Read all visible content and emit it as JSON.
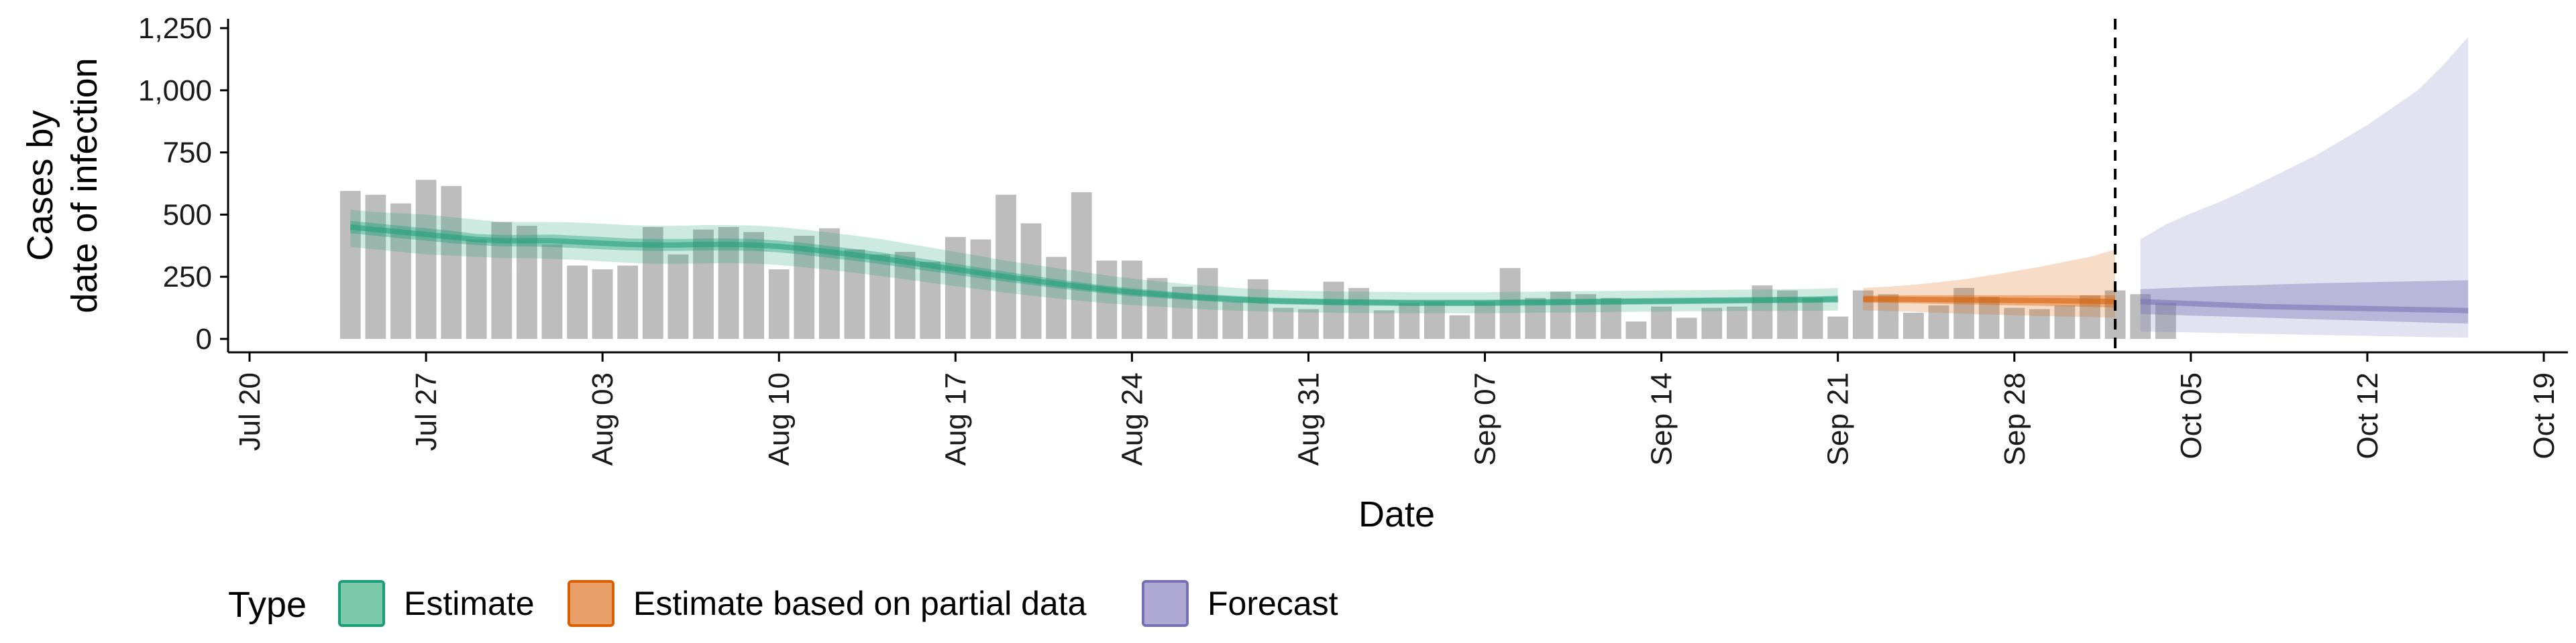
{
  "chart_data": {
    "type": "area",
    "xlabel": "Date",
    "ylabel_lines": [
      "Cases by",
      "date of infection"
    ],
    "x_tick_labels": [
      "Jul 20",
      "Jul 27",
      "Aug 03",
      "Aug 10",
      "Aug 17",
      "Aug 24",
      "Aug 31",
      "Sep 07",
      "Sep 14",
      "Sep 21",
      "Sep 28",
      "Oct 05",
      "Oct 12",
      "Oct 19"
    ],
    "x_tick_dates": [
      "2020-07-20",
      "2020-07-27",
      "2020-08-03",
      "2020-08-10",
      "2020-08-17",
      "2020-08-24",
      "2020-08-31",
      "2020-09-07",
      "2020-09-14",
      "2020-09-21",
      "2020-09-28",
      "2020-10-05",
      "2020-10-12",
      "2020-10-19"
    ],
    "xlim": [
      "2020-07-20",
      "2020-10-19"
    ],
    "y_tick_labels": [
      "0",
      "250",
      "500",
      "750",
      "1,000",
      "1,250"
    ],
    "y_tick_values": [
      0,
      250,
      500,
      750,
      1000,
      1250
    ],
    "ylim": [
      0,
      1250
    ],
    "vline_date": "2020-10-02",
    "legend": {
      "title": "Type",
      "position": "bottom",
      "items": [
        {
          "label": "Estimate",
          "fill": "#7cc8ab",
          "stroke": "#1b9e77"
        },
        {
          "label": "Estimate based on partial data",
          "fill": "#e8a068",
          "stroke": "#d95f02"
        },
        {
          "label": "Forecast",
          "fill": "#aeaad4",
          "stroke": "#7570b3"
        }
      ]
    },
    "colors": {
      "bars": "#bdbdbd",
      "estimate": "#1b9e77",
      "partial": "#d95f02",
      "forecast": "#7570b3"
    },
    "bars": {
      "start_date": "2020-07-24",
      "values": [
        595,
        580,
        545,
        640,
        615,
        400,
        470,
        455,
        380,
        295,
        280,
        295,
        450,
        340,
        440,
        450,
        430,
        280,
        415,
        445,
        360,
        340,
        350,
        310,
        410,
        400,
        580,
        465,
        330,
        590,
        315,
        315,
        245,
        210,
        285,
        150,
        240,
        125,
        120,
        230,
        205,
        115,
        145,
        150,
        95,
        150,
        285,
        165,
        190,
        180,
        165,
        70,
        130,
        85,
        125,
        130,
        215,
        195,
        165,
        90,
        195,
        180,
        105,
        135,
        205,
        170,
        125,
        120,
        135,
        175,
        195,
        180,
        145
      ]
    },
    "series": [
      {
        "name": "Estimate",
        "start_date": "2020-07-24",
        "median": [
          450,
          440,
          430,
          420,
          410,
          400,
          395,
          395,
          395,
          390,
          385,
          380,
          378,
          378,
          380,
          380,
          378,
          372,
          362,
          350,
          338,
          325,
          310,
          295,
          280,
          265,
          250,
          236,
          222,
          210,
          198,
          188,
          180,
          172,
          165,
          160,
          155,
          152,
          150,
          148,
          147,
          146,
          145,
          145,
          145,
          145,
          146,
          147,
          148,
          149,
          150,
          151,
          152,
          153,
          154,
          155,
          156,
          157,
          158,
          160
        ],
        "lower_50": [
          425,
          415,
          405,
          395,
          385,
          378,
          372,
          372,
          370,
          365,
          360,
          356,
          354,
          354,
          356,
          356,
          354,
          348,
          338,
          326,
          314,
          301,
          287,
          272,
          258,
          244,
          230,
          217,
          204,
          193,
          182,
          172,
          165,
          158,
          151,
          146,
          142,
          139,
          137,
          135,
          134,
          133,
          132,
          132,
          132,
          132,
          133,
          134,
          135,
          136,
          137,
          138,
          139,
          140,
          141,
          142,
          143,
          144,
          145,
          146
        ],
        "upper_50": [
          475,
          465,
          455,
          445,
          435,
          422,
          418,
          418,
          420,
          415,
          410,
          404,
          402,
          402,
          404,
          404,
          402,
          396,
          386,
          374,
          362,
          349,
          333,
          318,
          302,
          286,
          270,
          255,
          240,
          227,
          214,
          204,
          195,
          186,
          179,
          174,
          168,
          165,
          163,
          161,
          160,
          159,
          158,
          158,
          158,
          158,
          159,
          160,
          161,
          162,
          163,
          164,
          165,
          166,
          167,
          168,
          169,
          170,
          171,
          174
        ],
        "lower_90": [
          370,
          360,
          350,
          340,
          335,
          330,
          325,
          325,
          322,
          318,
          312,
          306,
          302,
          302,
          304,
          305,
          303,
          297,
          288,
          278,
          266,
          253,
          240,
          226,
          212,
          199,
          186,
          174,
          163,
          153,
          143,
          136,
          130,
          124,
          118,
          114,
          111,
          108,
          106,
          105,
          104,
          103,
          103,
          103,
          103,
          103,
          104,
          105,
          106,
          107,
          108,
          109,
          110,
          111,
          111,
          112,
          112,
          113,
          113,
          114
        ],
        "upper_90": [
          520,
          510,
          505,
          500,
          490,
          480,
          470,
          470,
          470,
          468,
          463,
          458,
          455,
          455,
          458,
          458,
          456,
          450,
          440,
          428,
          416,
          402,
          385,
          368,
          350,
          333,
          315,
          300,
          285,
          270,
          255,
          243,
          232,
          222,
          214,
          206,
          200,
          196,
          193,
          191,
          190,
          189,
          188,
          188,
          188,
          188,
          189,
          190,
          191,
          192,
          193,
          194,
          195,
          196,
          197,
          198,
          199,
          200,
          201,
          205
        ]
      },
      {
        "name": "Estimate based on partial data",
        "start_date": "2020-09-22",
        "median": [
          160,
          160,
          159,
          158,
          157,
          156,
          155,
          154,
          153,
          152,
          150
        ],
        "lower_50": [
          146,
          145,
          143,
          141,
          139,
          137,
          135,
          133,
          131,
          129,
          126
        ],
        "upper_50": [
          174,
          175,
          176,
          176,
          176,
          176,
          176,
          176,
          176,
          176,
          175
        ],
        "lower_90": [
          115,
          112,
          109,
          105,
          101,
          98,
          95,
          92,
          90,
          88,
          86
        ],
        "upper_90": [
          205,
          210,
          218,
          228,
          240,
          255,
          272,
          290,
          310,
          330,
          360
        ]
      },
      {
        "name": "Forecast",
        "start_date": "2020-10-03",
        "median": [
          150,
          146,
          142,
          138,
          134,
          130,
          128,
          126,
          124,
          122,
          120,
          118,
          116,
          114
        ],
        "lower_50": [
          100,
          97,
          94,
          91,
          88,
          85,
          82,
          79,
          76,
          73,
          70,
          67,
          64,
          62
        ],
        "upper_50": [
          200,
          204,
          208,
          212,
          215,
          218,
          221,
          224,
          226,
          228,
          230,
          232,
          234,
          236
        ],
        "lower_90": [
          30,
          28,
          26,
          24,
          22,
          20,
          18,
          16,
          14,
          12,
          10,
          8,
          6,
          5
        ],
        "upper_90": [
          400,
          460,
          505,
          545,
          590,
          640,
          690,
          740,
          800,
          860,
          930,
          1000,
          1100,
          1215
        ]
      }
    ]
  }
}
